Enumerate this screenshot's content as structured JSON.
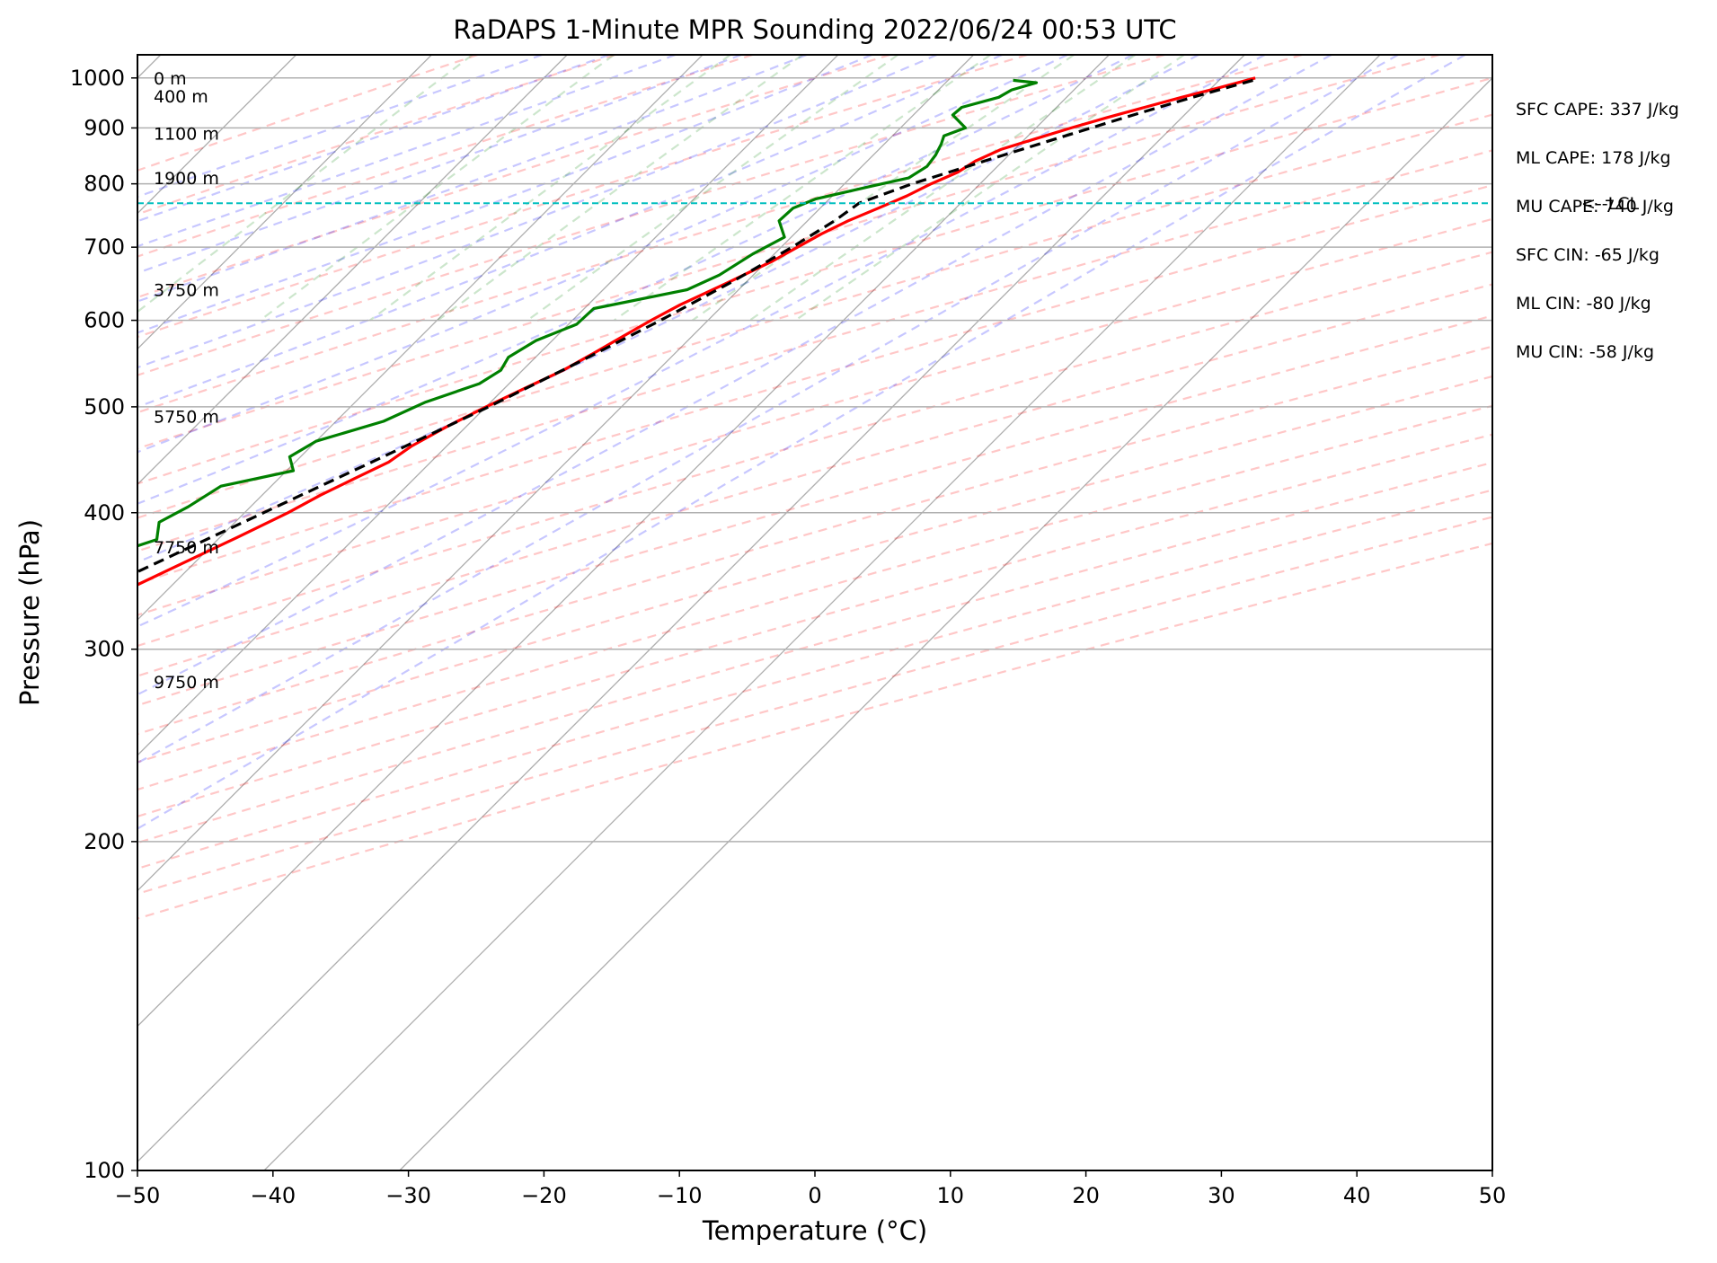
{
  "chart_data": {
    "type": "skew-t log-p sounding",
    "title": "RaDAPS 1-Minute MPR Sounding 2022/06/24 00:53 UTC",
    "xlabel": "Temperature (°C)",
    "ylabel": "Pressure (hPa)",
    "x_ticks": [
      -50,
      -40,
      -30,
      -20,
      -10,
      0,
      10,
      20,
      30,
      40,
      50
    ],
    "y_ticks": [
      100,
      200,
      300,
      400,
      500,
      600,
      700,
      800,
      900,
      1000
    ],
    "xlim": [
      -50,
      50
    ],
    "ylim": [
      1050,
      100
    ],
    "y_scale": "log",
    "grid": true,
    "stats": [
      "SFC CAPE: 337 J/kg",
      "ML CAPE: 178 J/kg",
      "MU CAPE: 740 J/kg",
      "SFC CIN: -65 J/kg",
      "ML CIN: -80 J/kg",
      "MU CIN: -58 J/kg"
    ],
    "height_labels": [
      {
        "text": "9750 m",
        "pressure": 280
      },
      {
        "text": "7750 m",
        "pressure": 372
      },
      {
        "text": "5750 m",
        "pressure": 490
      },
      {
        "text": "3750 m",
        "pressure": 640
      },
      {
        "text": "1900 m",
        "pressure": 810
      },
      {
        "text": "1100 m",
        "pressure": 890
      },
      {
        "text": "400 m",
        "pressure": 962
      },
      {
        "text": "0 m",
        "pressure": 1000
      }
    ],
    "lcl": {
      "pressure": 768,
      "label": "<--LCL",
      "color": "#00bfbf"
    },
    "series": [
      {
        "color": "#ff0000",
        "kind": "temperature",
        "points": [
          [
            1000,
            32.5
          ],
          [
            980,
            30.6
          ],
          [
            960,
            28.5
          ],
          [
            940,
            26.5
          ],
          [
            920,
            24.5
          ],
          [
            900,
            22.6
          ],
          [
            880,
            20.8
          ],
          [
            860,
            19.0
          ],
          [
            840,
            18.0
          ],
          [
            820,
            17.5
          ],
          [
            800,
            16.4
          ],
          [
            780,
            15.5
          ],
          [
            760,
            14.3
          ],
          [
            740,
            13.0
          ],
          [
            720,
            12.0
          ],
          [
            700,
            11.2
          ],
          [
            680,
            10.4
          ],
          [
            650,
            8.7
          ],
          [
            620,
            6.8
          ],
          [
            600,
            5.8
          ],
          [
            580,
            4.9
          ],
          [
            560,
            4.0
          ],
          [
            540,
            3.0
          ],
          [
            520,
            1.5
          ],
          [
            500,
            0.0
          ],
          [
            480,
            -1.4
          ],
          [
            460,
            -2.6
          ],
          [
            445,
            -3.1
          ],
          [
            430,
            -4.4
          ],
          [
            415,
            -5.7
          ],
          [
            400,
            -6.8
          ],
          [
            380,
            -8.7
          ],
          [
            360,
            -10.8
          ],
          [
            340,
            -13.0
          ],
          [
            320,
            -14.8
          ],
          [
            300,
            -16.8
          ],
          [
            280,
            -19.6
          ],
          [
            272,
            -20.8
          ]
        ]
      },
      {
        "color": "#008000",
        "kind": "dewpoint",
        "points": [
          [
            995,
            14.8
          ],
          [
            990,
            16.7
          ],
          [
            975,
            15.4
          ],
          [
            960,
            15.0
          ],
          [
            940,
            13.0
          ],
          [
            925,
            12.9
          ],
          [
            900,
            14.8
          ],
          [
            885,
            13.8
          ],
          [
            870,
            14.2
          ],
          [
            850,
            14.6
          ],
          [
            830,
            14.8
          ],
          [
            810,
            14.3
          ],
          [
            795,
            12.0
          ],
          [
            775,
            9.0
          ],
          [
            760,
            8.0
          ],
          [
            740,
            7.9
          ],
          [
            715,
            9.5
          ],
          [
            690,
            8.4
          ],
          [
            660,
            7.5
          ],
          [
            640,
            6.2
          ],
          [
            615,
            0.7
          ],
          [
            595,
            0.6
          ],
          [
            575,
            -1.2
          ],
          [
            555,
            -2.0
          ],
          [
            540,
            -1.6
          ],
          [
            525,
            -2.2
          ],
          [
            505,
            -4.8
          ],
          [
            485,
            -6.5
          ],
          [
            465,
            -10.0
          ],
          [
            450,
            -10.8
          ],
          [
            437,
            -9.5
          ],
          [
            423,
            -13.7
          ],
          [
            405,
            -14.6
          ],
          [
            392,
            -15.6
          ],
          [
            378,
            -14.5
          ],
          [
            366,
            -16.8
          ],
          [
            352,
            -15.6
          ],
          [
            340,
            -16.1
          ],
          [
            325,
            -17.3
          ],
          [
            312,
            -18.1
          ],
          [
            304,
            -21.5
          ],
          [
            295,
            -33.1
          ],
          [
            285,
            -33.9
          ],
          [
            270,
            -40.5
          ]
        ]
      },
      {
        "color": "#000000",
        "kind": "parcel",
        "points": [
          [
            995,
            32.5
          ],
          [
            960,
            29.3
          ],
          [
            920,
            25.8
          ],
          [
            880,
            22.3
          ],
          [
            840,
            18.7
          ],
          [
            800,
            15.0
          ],
          [
            768,
            12.5
          ],
          [
            740,
            12.0
          ],
          [
            700,
            10.8
          ],
          [
            650,
            8.9
          ],
          [
            600,
            6.5
          ],
          [
            550,
            3.6
          ],
          [
            500,
            0.2
          ],
          [
            450,
            -3.9
          ],
          [
            400,
            -8.6
          ],
          [
            350,
            -13.9
          ],
          [
            300,
            -18.7
          ],
          [
            270,
            -21.7
          ]
        ]
      }
    ]
  }
}
